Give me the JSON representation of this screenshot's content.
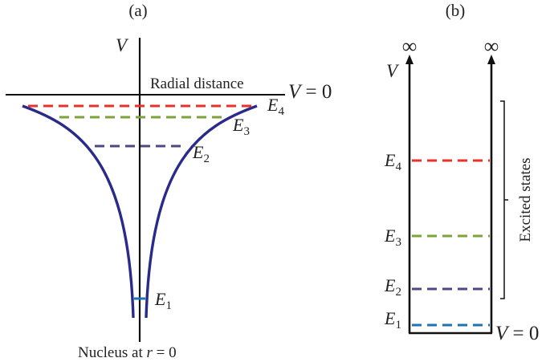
{
  "colors": {
    "curve": "#2a2a8a",
    "axis": "#111111",
    "e4": "#e8312a",
    "e3": "#7ea33a",
    "e2": "#4e4882",
    "e1": "#1f73b5"
  },
  "panel_a": {
    "label": "(a)",
    "v_axis": "V",
    "radial_label": "Radial distance",
    "v_zero": {
      "var": "V",
      "eq": " = 0"
    },
    "nucleus": {
      "text": "Nucleus at ",
      "var": "r",
      "eq": " = 0"
    },
    "levels": [
      {
        "sym": "E",
        "sub": "4"
      },
      {
        "sym": "E",
        "sub": "3"
      },
      {
        "sym": "E",
        "sub": "2"
      },
      {
        "sym": "E",
        "sub": "1"
      }
    ]
  },
  "panel_b": {
    "label": "(b)",
    "v_axis": "V",
    "infinity": "∞",
    "v_zero": {
      "var": "V",
      "eq": " = 0"
    },
    "bracket_label": "Excited states",
    "levels": [
      {
        "sym": "E",
        "sub": "4"
      },
      {
        "sym": "E",
        "sub": "3"
      },
      {
        "sym": "E",
        "sub": "2"
      },
      {
        "sym": "E",
        "sub": "1"
      }
    ]
  }
}
